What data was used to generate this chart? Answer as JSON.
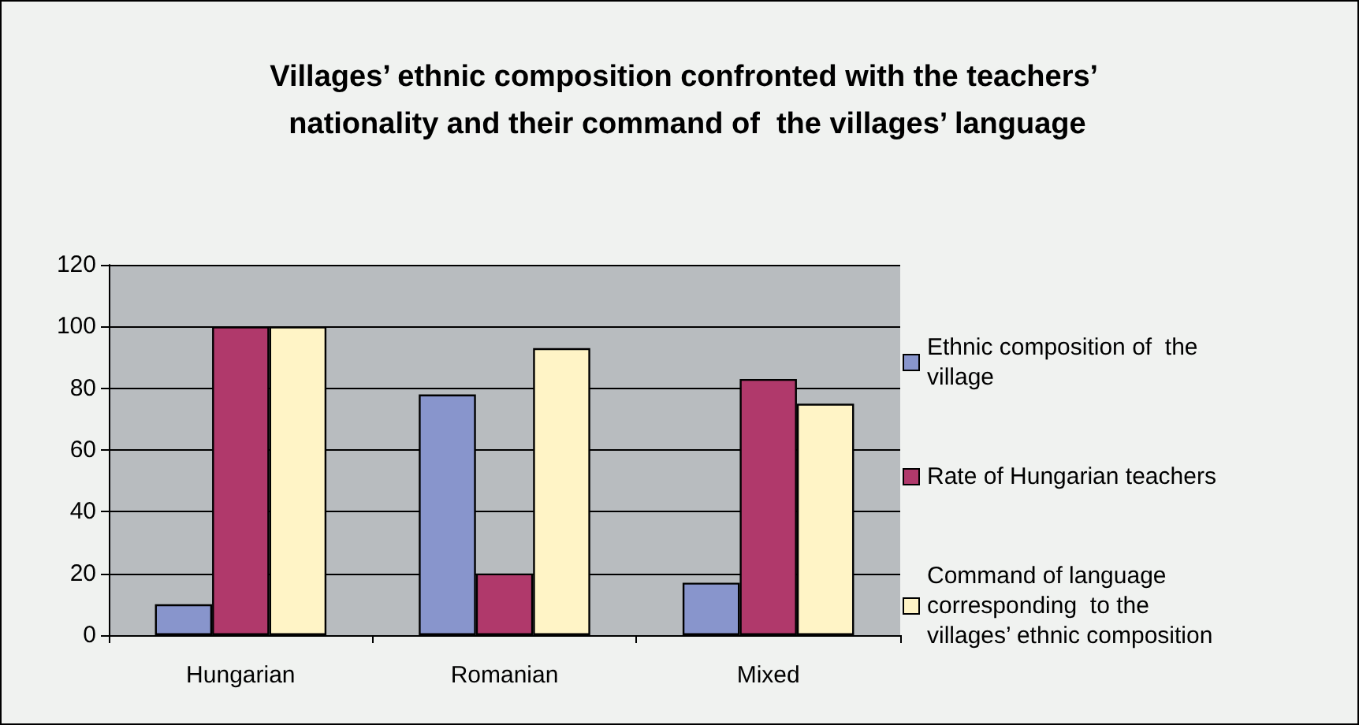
{
  "chart_data": {
    "type": "bar",
    "title": "Villages’ ethnic composition confronted with the teachers’ nationality and their command of  the villages’ language",
    "categories": [
      "Hungarian",
      "Romanian",
      "Mixed"
    ],
    "series": [
      {
        "name": "Ethnic composition of  the village",
        "color": "#8895cc",
        "values": [
          10,
          78,
          17
        ]
      },
      {
        "name": "Rate of Hungarian teachers",
        "color": "#b0396b",
        "values": [
          100,
          20,
          83
        ]
      },
      {
        "name": "Command of language corresponding  to the villages’ ethnic composition",
        "color": "#fff4c6",
        "values": [
          100,
          93,
          75
        ]
      }
    ],
    "ylim": [
      0,
      120
    ],
    "yticks": [
      0,
      20,
      40,
      60,
      80,
      100,
      120
    ],
    "grid": "y",
    "legend": "right"
  }
}
